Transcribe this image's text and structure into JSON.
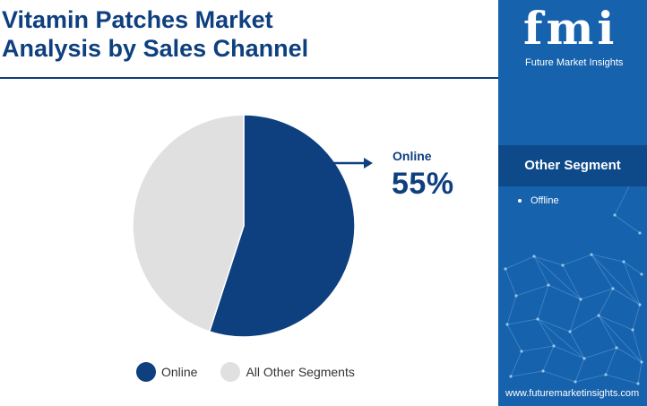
{
  "title": "Vitamin Patches Market\nAnalysis by Sales Channel",
  "colors": {
    "primary": "#0e3f7e",
    "other": "#e0e0e0",
    "sidebar": "#1662ad",
    "sidebar_band": "#0e4a8a"
  },
  "chart_data": {
    "type": "pie",
    "slices": [
      {
        "label": "Online",
        "value": 55,
        "color": "#0e3f7e"
      },
      {
        "label": "All Other Segments",
        "value": 45,
        "color": "#e0e0e0"
      }
    ],
    "callout": {
      "label": "Online",
      "value": "55%"
    },
    "legend": [
      "Online",
      "All Other Segments"
    ],
    "legend_position": "bottom"
  },
  "sidebar": {
    "logo_text": "fmi",
    "logo_subtitle": "Future Market Insights",
    "other_segment_title": "Other Segment",
    "other_segment_items": [
      "Offline"
    ],
    "website": "www.futuremarketinsights.com"
  }
}
